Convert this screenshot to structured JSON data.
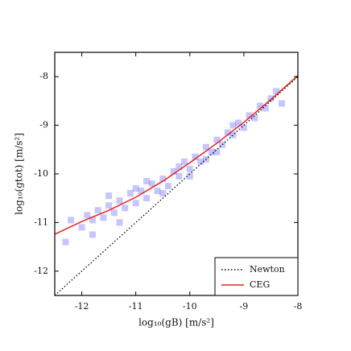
{
  "chart_data": {
    "type": "scatter",
    "x_label": "log₁₀(gB) [m/s²]",
    "y_label": "log₁₀(gtot) [m/s²]",
    "xlim": [
      -12.5,
      -8
    ],
    "ylim": [
      -12.5,
      -7.5
    ],
    "xticks": [
      -12,
      -11,
      -10,
      -9,
      -8
    ],
    "yticks": [
      -12,
      -11,
      -10,
      -9,
      -8
    ],
    "legend": "lower right",
    "points": {
      "color": "#1a1aff",
      "x": [
        -12.2,
        -12.0,
        -11.9,
        -11.8,
        -11.7,
        -11.6,
        -11.5,
        -11.4,
        -11.3,
        -11.2,
        -11.1,
        -11.0,
        -10.9,
        -10.8,
        -10.7,
        -10.6,
        -10.5,
        -10.4,
        -10.3,
        -10.2,
        -10.1,
        -10.0,
        -9.9,
        -9.8,
        -9.7,
        -9.6,
        -9.5,
        -9.4,
        -9.3,
        -9.2,
        -9.1,
        -9.0,
        -8.9,
        -8.8,
        -8.7,
        -8.6,
        -8.5,
        -11.8,
        -11.5,
        -11.0,
        -10.5,
        -10.0,
        -9.5,
        -12.3,
        -11.3,
        -10.8,
        -10.2,
        -9.7,
        -9.2,
        -8.4,
        -8.3
      ],
      "y": [
        -10.95,
        -11.1,
        -10.85,
        -10.95,
        -10.75,
        -10.9,
        -10.65,
        -10.8,
        -10.55,
        -10.7,
        -10.4,
        -10.6,
        -10.35,
        -10.5,
        -10.2,
        -10.35,
        -10.1,
        -10.25,
        -9.95,
        -10.05,
        -9.75,
        -9.9,
        -9.65,
        -9.75,
        -9.45,
        -9.55,
        -9.3,
        -9.4,
        -9.15,
        -9.2,
        -8.95,
        -9.05,
        -8.8,
        -8.85,
        -8.6,
        -8.65,
        -8.45,
        -11.25,
        -10.45,
        -10.3,
        -10.4,
        -10.05,
        -9.55,
        -11.4,
        -11.0,
        -10.15,
        -9.85,
        -9.7,
        -9.0,
        -8.3,
        -8.55
      ]
    },
    "series": [
      {
        "name": "Newton",
        "color": "#000000",
        "dash": "dotted",
        "x": [
          -12.5,
          -8
        ],
        "values": [
          -12.5,
          -8
        ]
      },
      {
        "name": "CEG",
        "color": "#e8201a",
        "dash": "solid",
        "x": [
          -12.5,
          -12,
          -11.5,
          -11,
          -10.5,
          -10,
          -9.5,
          -9,
          -8.5,
          -8
        ],
        "values": [
          -11.24,
          -10.98,
          -10.75,
          -10.48,
          -10.15,
          -9.77,
          -9.37,
          -8.94,
          -8.47,
          -7.98
        ]
      }
    ]
  }
}
